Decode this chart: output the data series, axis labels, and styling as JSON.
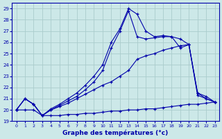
{
  "title": "Graphe des températures (°c)",
  "bg_color": "#cce8e8",
  "grid_color": "#aacccc",
  "line_color": "#0000aa",
  "xlim": [
    -0.5,
    23.5
  ],
  "ylim": [
    19,
    29.5
  ],
  "yticks": [
    19,
    20,
    21,
    22,
    23,
    24,
    25,
    26,
    27,
    28,
    29
  ],
  "xticks": [
    0,
    1,
    2,
    3,
    4,
    5,
    6,
    7,
    8,
    9,
    10,
    11,
    12,
    13,
    14,
    15,
    16,
    17,
    18,
    19,
    20,
    21,
    22,
    23
  ],
  "series": [
    [
      20.0,
      21.0,
      20.5,
      19.5,
      20.1,
      20.5,
      21.0,
      21.5,
      22.2,
      23.0,
      24.0,
      26.0,
      27.2,
      29.0,
      28.5,
      27.0,
      26.5,
      26.6,
      26.5,
      26.3,
      25.8,
      21.5,
      21.0,
      20.7
    ],
    [
      20.0,
      21.0,
      20.5,
      19.5,
      20.0,
      20.4,
      20.8,
      21.2,
      21.8,
      22.5,
      23.5,
      25.5,
      27.0,
      28.8,
      26.5,
      26.3,
      26.4,
      26.5,
      26.5,
      25.5,
      25.8,
      21.3,
      21.0,
      20.7
    ],
    [
      20.0,
      21.0,
      20.5,
      19.5,
      20.0,
      20.3,
      20.6,
      21.0,
      21.4,
      21.8,
      22.2,
      22.5,
      23.0,
      23.5,
      24.5,
      24.8,
      25.0,
      25.3,
      25.5,
      25.7,
      25.8,
      21.5,
      21.2,
      20.7
    ],
    [
      20.0,
      20.0,
      20.0,
      19.5,
      19.5,
      19.5,
      19.6,
      19.6,
      19.7,
      19.7,
      19.8,
      19.9,
      19.9,
      20.0,
      20.0,
      20.1,
      20.1,
      20.2,
      20.3,
      20.4,
      20.5,
      20.5,
      20.6,
      20.7
    ]
  ]
}
